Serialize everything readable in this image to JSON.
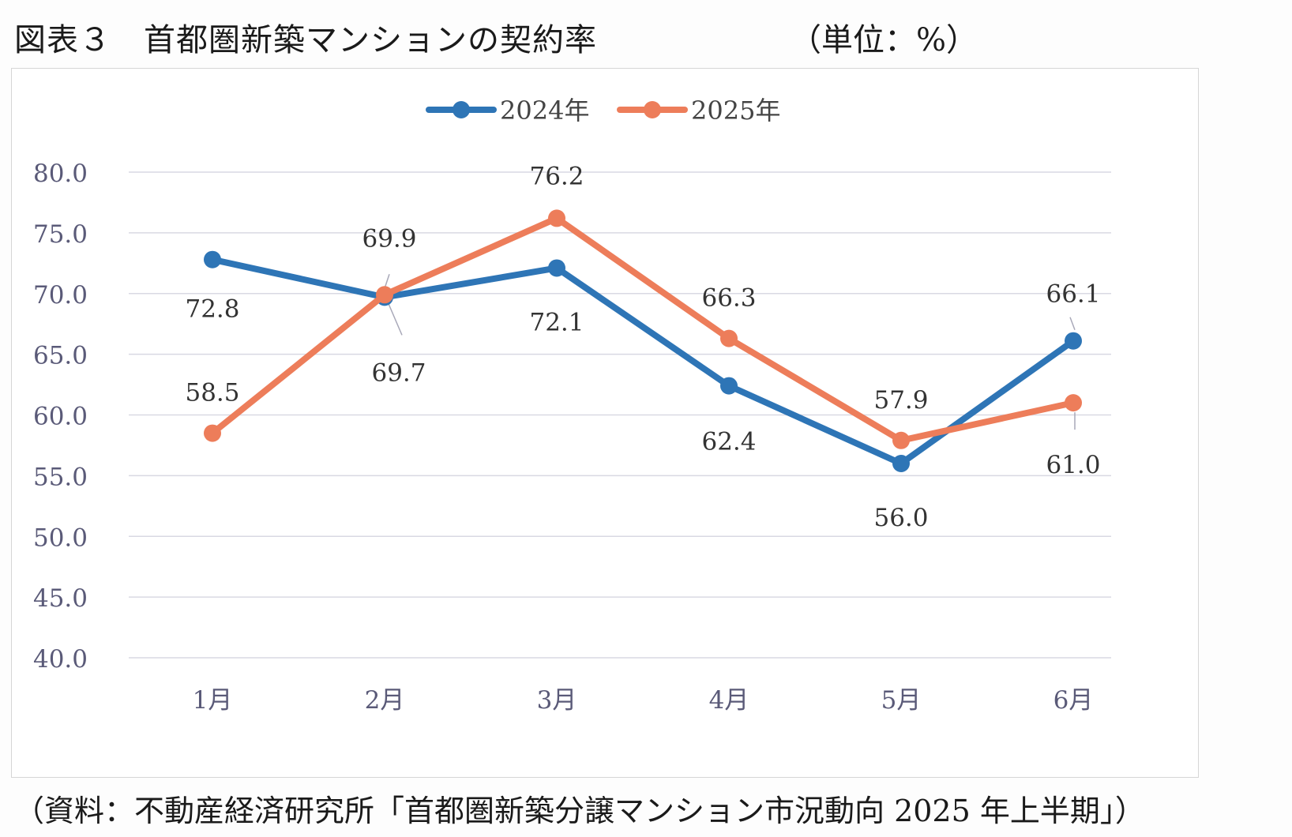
{
  "figure": {
    "title": "図表３　首都圏新築マンションの契約率",
    "unit": "（単位：%）",
    "source": "（資料：不動産経済研究所「首都圏新築分譲マンション市況動向 2025 年上半期」）"
  },
  "colors": {
    "series_2024": "#2e75b6",
    "series_2025": "#ed7d5a",
    "grid": "#d9d9e3",
    "tick_text": "#5a5a78",
    "label_text": "#333333"
  },
  "chart_data": {
    "type": "line",
    "title": "",
    "xlabel": "",
    "ylabel": "",
    "categories": [
      "1月",
      "2月",
      "3月",
      "4月",
      "5月",
      "6月"
    ],
    "ylim": [
      40,
      80
    ],
    "yticks": [
      "40.0",
      "45.0",
      "50.0",
      "55.0",
      "60.0",
      "65.0",
      "70.0",
      "75.0",
      "80.0"
    ],
    "grid": true,
    "legend": "top-center",
    "series": [
      {
        "name": "2024年",
        "values": [
          72.8,
          69.7,
          72.1,
          62.4,
          56.0,
          66.1
        ],
        "labels": [
          "72.8",
          "69.7",
          "72.1",
          "62.4",
          "56.0",
          "66.1"
        ]
      },
      {
        "name": "2025年",
        "values": [
          58.5,
          69.9,
          76.2,
          66.3,
          57.9,
          61.0
        ],
        "labels": [
          "58.5",
          "69.9",
          "76.2",
          "66.3",
          "57.9",
          "61.0"
        ]
      }
    ]
  }
}
